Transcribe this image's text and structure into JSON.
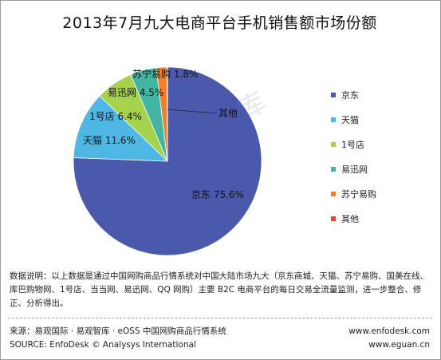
{
  "title": "2013年7月九大电商平台手机销售额市场份额",
  "watermark": "易观智库",
  "chart_data": {
    "type": "pie",
    "title": "2013年7月九大电商平台手机销售额市场份额",
    "slices": [
      {
        "name": "京东",
        "value": 75.6,
        "label": "京东 75.6%",
        "color": "#4a59ac"
      },
      {
        "name": "天猫",
        "value": 11.6,
        "label": "天猫 11.6%",
        "color": "#4fb7e3"
      },
      {
        "name": "1号店",
        "value": 6.4,
        "label": "1号店 6.4%",
        "color": "#a6d34d"
      },
      {
        "name": "易迅网",
        "value": 4.5,
        "label": "易迅网 4.5%",
        "color": "#43b5a3"
      },
      {
        "name": "苏宁易购",
        "value": 1.8,
        "label": "苏宁易购 1.8%",
        "color": "#ef7f2b"
      },
      {
        "name": "其他",
        "value": 0.1,
        "label": "其他",
        "color": "#e34b2a"
      }
    ],
    "legend_position": "right",
    "start_direction": "top",
    "direction": "clockwise"
  },
  "note": "数据说明：以上数据是通过中国网购商品行情系统对中国大陆市场九大（京东商城、天猫、苏宁易购、国美在线、库巴购物网、1号店、当当网、易迅网、QQ 网购）主要 B2C 电商平台的每日交易全流量监测，进一步整合、修正、分析得出。",
  "footer": {
    "source_cn": "来源：易观国际 · 易观智库 · eOSS 中国网购商品行情系统",
    "source_en": "SOURCE: EnfoDesk © Analysys International",
    "url1": "www.enfodesk.com",
    "url2": "www.eguan.cn"
  }
}
